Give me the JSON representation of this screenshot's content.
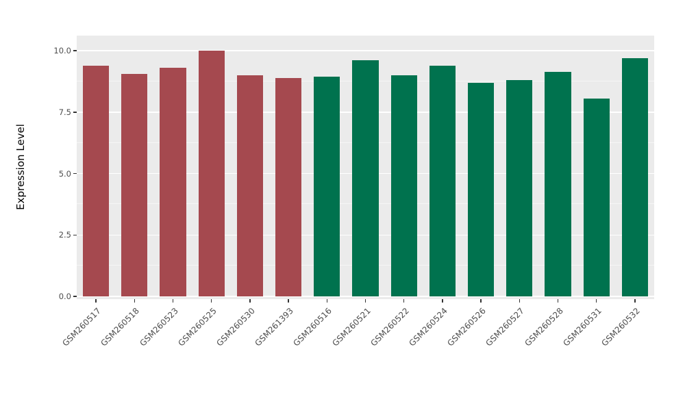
{
  "chart_data": {
    "type": "bar",
    "title": "",
    "xlabel": "",
    "ylabel": "Expression Level",
    "categories": [
      "GSM260517",
      "GSM260518",
      "GSM260523",
      "GSM260525",
      "GSM260530",
      "GSM261393",
      "GSM260516",
      "GSM260521",
      "GSM260522",
      "GSM260524",
      "GSM260526",
      "GSM260527",
      "GSM260528",
      "GSM260531",
      "GSM260532"
    ],
    "values": [
      9.4,
      9.05,
      9.3,
      10.0,
      9.0,
      8.9,
      8.95,
      9.6,
      9.0,
      9.4,
      8.7,
      8.8,
      9.15,
      8.05,
      9.7
    ],
    "bar_groups": [
      0,
      0,
      0,
      0,
      0,
      0,
      1,
      1,
      1,
      1,
      1,
      1,
      1,
      1,
      1
    ],
    "group_colors": [
      "#A5494F",
      "#00724E"
    ],
    "yticks": [
      0.0,
      2.5,
      5.0,
      7.5,
      10.0
    ],
    "ytick_labels": [
      "0.0",
      "2.5",
      "5.0",
      "7.5",
      "10.0"
    ],
    "minor_gridlines": [
      1.25,
      3.75,
      6.25,
      8.75
    ],
    "ylim": [
      0,
      10.6
    ],
    "grid": true,
    "legend": "none",
    "panel_background": "#EBEBEB",
    "grid_color": "#FFFFFF",
    "tick_color": "#333333",
    "tick_label_color": "#4D4D4D"
  }
}
